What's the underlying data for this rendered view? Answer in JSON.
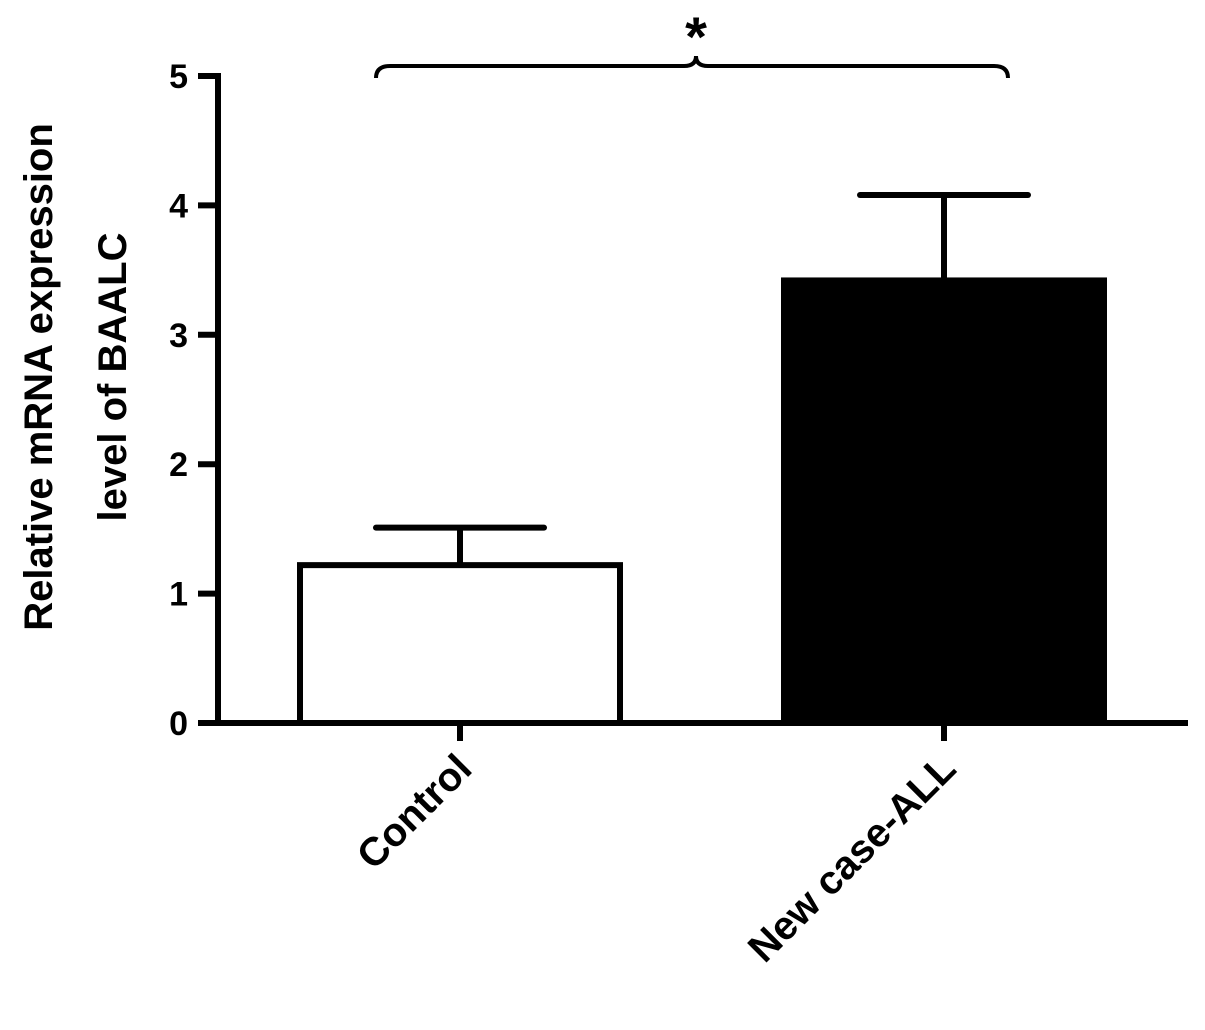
{
  "chart_data": {
    "type": "bar",
    "title": "",
    "xlabel": "",
    "ylabel_lines": [
      "Relative mRNA expression",
      "level of BAALC"
    ],
    "ylim": [
      0,
      5
    ],
    "yticks": [
      "0",
      "1",
      "2",
      "3",
      "4",
      "5"
    ],
    "categories": [
      "Control",
      "New case-ALL"
    ],
    "values": [
      1.22,
      3.42
    ],
    "error_upper": [
      1.51,
      4.08
    ],
    "bar_colors": [
      "#ffffff",
      "#000000"
    ],
    "significance": {
      "between": [
        0,
        1
      ],
      "label": "*"
    },
    "grid": false,
    "legend": "none"
  }
}
